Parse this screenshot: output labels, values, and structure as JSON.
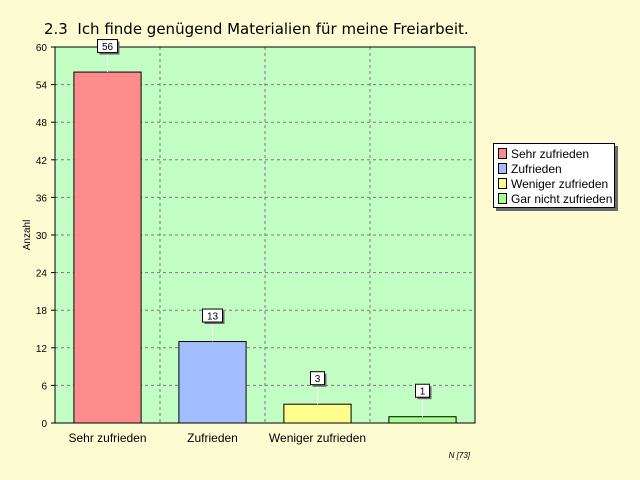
{
  "title": "2.3  Ich finde genügend Materialien für meine Freiarbeit.",
  "footnote": "N [73]",
  "colors": {
    "background": "#fdfbd1",
    "plot_bg": "#c2fec3",
    "grid": "#7a7a7a"
  },
  "legend": {
    "items": [
      {
        "label": "Sehr zufrieden",
        "color": "#ff8c8c"
      },
      {
        "label": "Zufrieden",
        "color": "#a3bdfe"
      },
      {
        "label": "Weniger zufrieden",
        "color": "#fefe8c"
      },
      {
        "label": "Gar nicht zufrieden",
        "color": "#a6ff8c"
      }
    ]
  },
  "chart_data": {
    "type": "bar",
    "title": "2.3  Ich finde genügend Materialien für meine Freiarbeit.",
    "ylabel": "Anzahl",
    "xlabel": "",
    "categories": [
      "Sehr zufrieden",
      "Zufrieden",
      "Weniger zufrieden",
      "Gar nicht zufrieden"
    ],
    "category_labels_shown": [
      "Sehr zufrieden",
      "Zufrieden",
      "Weniger zufrieden",
      ""
    ],
    "values": [
      56,
      13,
      3,
      1
    ],
    "colors": [
      "#ff8c8c",
      "#a3bdfe",
      "#fefe8c",
      "#a6ff8c"
    ],
    "ylim": [
      0,
      60
    ],
    "yticks": [
      0,
      6,
      12,
      18,
      24,
      30,
      36,
      42,
      48,
      54,
      60
    ],
    "grid": true,
    "legend_position": "right"
  }
}
